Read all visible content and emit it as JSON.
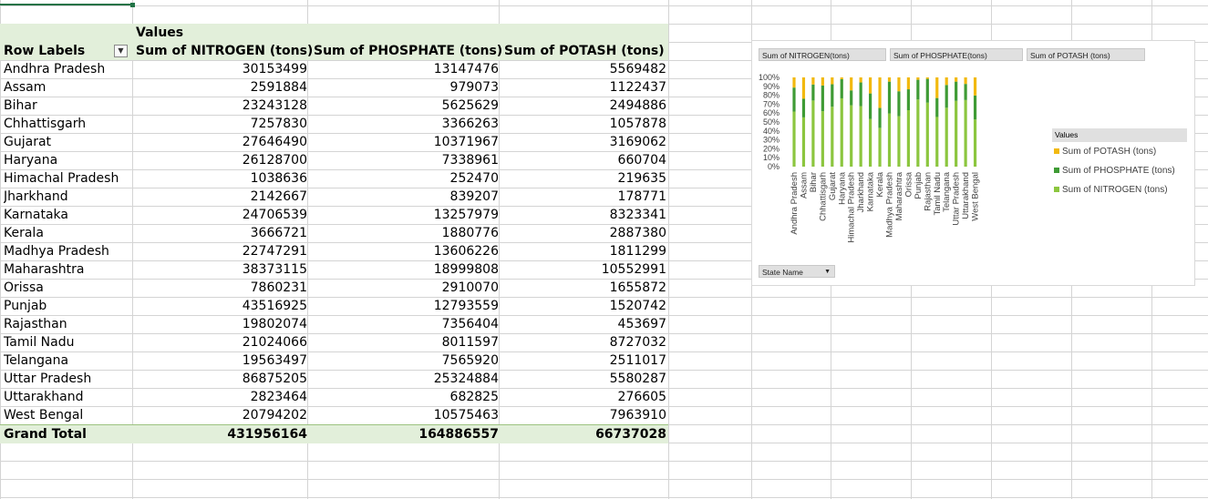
{
  "pivot": {
    "values_label": "Values",
    "row_labels_header": "Row Labels",
    "columns": [
      "Sum of NITROGEN (tons)",
      "Sum of PHOSPHATE (tons)",
      "Sum of POTASH  (tons)"
    ],
    "rows": [
      {
        "state": "Andhra Pradesh",
        "nitrogen": "30153499",
        "phosphate": "13147476",
        "potash": "5569482"
      },
      {
        "state": "Assam",
        "nitrogen": "2591884",
        "phosphate": "979073",
        "potash": "1122437"
      },
      {
        "state": "Bihar",
        "nitrogen": "23243128",
        "phosphate": "5625629",
        "potash": "2494886"
      },
      {
        "state": "Chhattisgarh",
        "nitrogen": "7257830",
        "phosphate": "3366263",
        "potash": "1057878"
      },
      {
        "state": "Gujarat",
        "nitrogen": "27646490",
        "phosphate": "10371967",
        "potash": "3169062"
      },
      {
        "state": "Haryana",
        "nitrogen": "26128700",
        "phosphate": "7338961",
        "potash": "660704"
      },
      {
        "state": "Himachal Pradesh",
        "nitrogen": "1038636",
        "phosphate": "252470",
        "potash": "219635"
      },
      {
        "state": "Jharkhand",
        "nitrogen": "2142667",
        "phosphate": "839207",
        "potash": "178771"
      },
      {
        "state": "Karnataka",
        "nitrogen": "24706539",
        "phosphate": "13257979",
        "potash": "8323341"
      },
      {
        "state": "Kerala",
        "nitrogen": "3666721",
        "phosphate": "1880776",
        "potash": "2887380"
      },
      {
        "state": "Madhya Pradesh",
        "nitrogen": "22747291",
        "phosphate": "13606226",
        "potash": "1811299"
      },
      {
        "state": "Maharashtra",
        "nitrogen": "38373115",
        "phosphate": "18999808",
        "potash": "10552991"
      },
      {
        "state": "Orissa",
        "nitrogen": "7860231",
        "phosphate": "2910070",
        "potash": "1655872"
      },
      {
        "state": "Punjab",
        "nitrogen": "43516925",
        "phosphate": "12793559",
        "potash": "1520742"
      },
      {
        "state": "Rajasthan",
        "nitrogen": "19802074",
        "phosphate": "7356404",
        "potash": "453697"
      },
      {
        "state": "Tamil Nadu",
        "nitrogen": "21024066",
        "phosphate": "8011597",
        "potash": "8727032"
      },
      {
        "state": "Telangana",
        "nitrogen": "19563497",
        "phosphate": "7565920",
        "potash": "2511017"
      },
      {
        "state": "Uttar Pradesh",
        "nitrogen": "86875205",
        "phosphate": "25324884",
        "potash": "5580287"
      },
      {
        "state": "Uttarakhand",
        "nitrogen": "2823464",
        "phosphate": "682825",
        "potash": "276605"
      },
      {
        "state": "West Bengal",
        "nitrogen": "20794202",
        "phosphate": "10575463",
        "potash": "7963910"
      }
    ],
    "grand_total": {
      "label": "Grand Total",
      "nitrogen": "431956164",
      "phosphate": "164886557",
      "potash": "66737028"
    }
  },
  "chart": {
    "field_buttons": [
      "Sum of NITROGEN(tons)",
      "Sum of PHOSPHATE(tons)",
      "Sum of POTASH  (tons)"
    ],
    "legend_title": "Values",
    "legend": [
      "Sum of POTASH  (tons)",
      "Sum of PHOSPHATE  (tons)",
      "Sum of NITROGEN  (tons)"
    ],
    "axis_filter_label": "State Name",
    "colors": {
      "nitrogen": "#8cc63f",
      "phosphate": "#3f9b35",
      "potash": "#f2b90f"
    }
  },
  "chart_data": {
    "type": "bar",
    "stacked": "100%",
    "categories": [
      "Andhra Pradesh",
      "Assam",
      "Bihar",
      "Chhattisgarh",
      "Gujarat",
      "Haryana",
      "Himachal Pradesh",
      "Jharkhand",
      "Karnataka",
      "Kerala",
      "Madhya Pradesh",
      "Maharashtra",
      "Orissa",
      "Punjab",
      "Rajasthan",
      "Tamil Nadu",
      "Telangana",
      "Uttar Pradesh",
      "Uttarakhand",
      "West Bengal"
    ],
    "series": [
      {
        "name": "Sum of NITROGEN  (tons)",
        "values": [
          30153499,
          2591884,
          23243128,
          7257830,
          27646490,
          26128700,
          1038636,
          2142667,
          24706539,
          3666721,
          22747291,
          38373115,
          7860231,
          43516925,
          19802074,
          21024066,
          19563497,
          86875205,
          2823464,
          20794202
        ]
      },
      {
        "name": "Sum of PHOSPHATE  (tons)",
        "values": [
          13147476,
          979073,
          5625629,
          3366263,
          10371967,
          7338961,
          252470,
          839207,
          13257979,
          1880776,
          13606226,
          18999808,
          2910070,
          12793559,
          7356404,
          8011597,
          7565920,
          25324884,
          682825,
          10575463
        ]
      },
      {
        "name": "Sum of POTASH  (tons)",
        "values": [
          5569482,
          1122437,
          2494886,
          1057878,
          3169062,
          660704,
          219635,
          178771,
          8323341,
          2887380,
          1811299,
          10552991,
          1655872,
          1520742,
          453697,
          8727032,
          2511017,
          5580287,
          276605,
          7963910
        ]
      }
    ],
    "y_ticks": [
      "0%",
      "10%",
      "20%",
      "30%",
      "40%",
      "50%",
      "60%",
      "70%",
      "80%",
      "90%",
      "100%"
    ],
    "ylim": [
      0,
      100
    ],
    "legend_position": "right"
  }
}
